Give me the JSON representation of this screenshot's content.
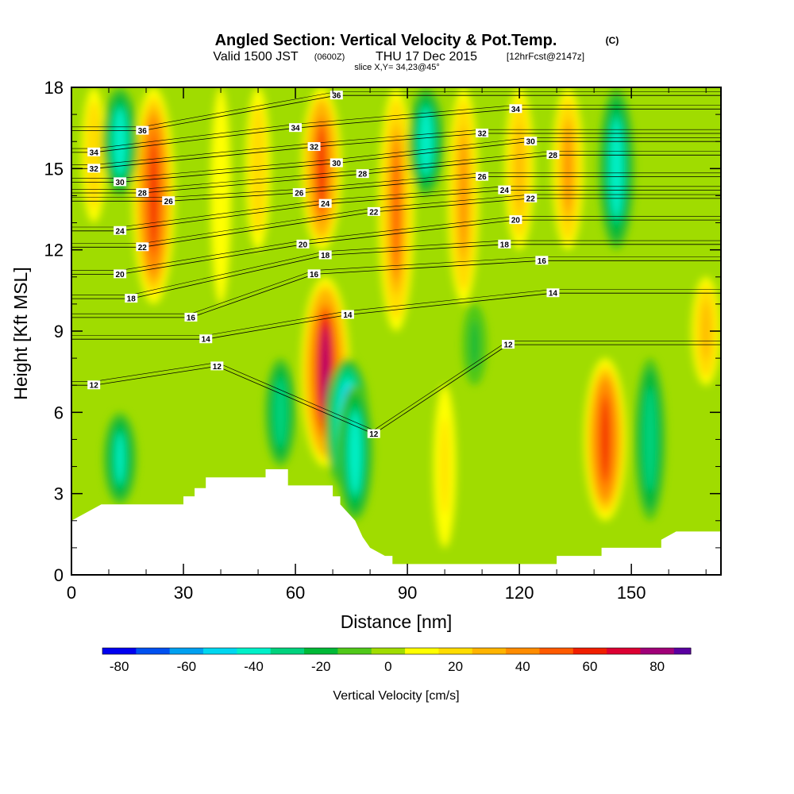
{
  "header": {
    "title_main": "Angled Section: Vertical Velocity & Pot.Temp.",
    "title_unit": "(C)",
    "valid_prefix": "Valid 1500 JST",
    "valid_utc": "(0600Z)",
    "valid_date": "THU 17 Dec 2015",
    "forecast": "[12hrFcst@2147z]",
    "slice": "slice X,Y= 34,23@45°"
  },
  "chart_data": {
    "type": "heatmap",
    "xlabel": "Distance [nm]",
    "ylabel": "Height [Kft MSL]",
    "xlim": [
      0,
      174
    ],
    "ylim": [
      0,
      18
    ],
    "x_ticks": [
      0,
      30,
      60,
      90,
      120,
      150
    ],
    "y_ticks": [
      0,
      3,
      6,
      9,
      12,
      15,
      18
    ],
    "colorbar": {
      "label": "Vertical Velocity [cm/s]",
      "tick_labels": [
        -80,
        -60,
        -40,
        -20,
        0,
        20,
        40,
        60,
        80
      ],
      "bounds": [
        -85,
        90
      ],
      "bins": [
        {
          "from": -85,
          "to": -75,
          "color": "#0000f0"
        },
        {
          "from": -75,
          "to": -65,
          "color": "#0050f0"
        },
        {
          "from": -65,
          "to": -55,
          "color": "#00a0f0"
        },
        {
          "from": -55,
          "to": -45,
          "color": "#00d7f0"
        },
        {
          "from": -45,
          "to": -35,
          "color": "#00f0c8"
        },
        {
          "from": -35,
          "to": -25,
          "color": "#00d27d"
        },
        {
          "from": -25,
          "to": -15,
          "color": "#00b937"
        },
        {
          "from": -15,
          "to": -5,
          "color": "#50c819"
        },
        {
          "from": -5,
          "to": 5,
          "color": "#a0dc00"
        },
        {
          "from": 5,
          "to": 15,
          "color": "#ffff00"
        },
        {
          "from": 15,
          "to": 25,
          "color": "#ffdc00"
        },
        {
          "from": 25,
          "to": 35,
          "color": "#ffb400"
        },
        {
          "from": 35,
          "to": 45,
          "color": "#ff8c00"
        },
        {
          "from": 45,
          "to": 55,
          "color": "#ff5a00"
        },
        {
          "from": 55,
          "to": 65,
          "color": "#f01e00"
        },
        {
          "from": 65,
          "to": 75,
          "color": "#dc0032"
        },
        {
          "from": 75,
          "to": 85,
          "color": "#a00078"
        },
        {
          "from": 85,
          "to": 90,
          "color": "#5a00a0"
        }
      ]
    },
    "terrain_top_kft": [
      [
        0,
        2.0
      ],
      [
        4,
        2.3
      ],
      [
        8,
        2.6
      ],
      [
        30,
        2.6
      ],
      [
        30,
        2.9
      ],
      [
        33,
        2.9
      ],
      [
        33,
        3.2
      ],
      [
        36,
        3.2
      ],
      [
        36,
        3.6
      ],
      [
        52,
        3.6
      ],
      [
        52,
        3.9
      ],
      [
        58,
        3.9
      ],
      [
        58,
        3.3
      ],
      [
        70,
        3.3
      ],
      [
        70,
        2.9
      ],
      [
        72,
        2.9
      ],
      [
        72,
        2.6
      ],
      [
        74,
        2.3
      ],
      [
        76,
        2.0
      ],
      [
        78,
        1.4
      ],
      [
        80,
        1.0
      ],
      [
        84,
        0.7
      ],
      [
        86,
        0.7
      ],
      [
        86,
        0.4
      ],
      [
        130,
        0.4
      ],
      [
        130,
        0.7
      ],
      [
        142,
        0.7
      ],
      [
        142,
        1.0
      ],
      [
        158,
        1.0
      ],
      [
        158,
        1.3
      ],
      [
        162,
        1.6
      ],
      [
        174,
        1.6
      ]
    ],
    "velocity_bands": [
      {
        "x": 22,
        "y0": 10,
        "y1": 18,
        "peak": 60
      },
      {
        "x": 6,
        "y0": 13,
        "y1": 18,
        "peak": 20
      },
      {
        "x": 13,
        "y0": 14,
        "y1": 18,
        "peak": -45
      },
      {
        "x": 40,
        "y0": 10,
        "y1": 18,
        "peak": 10
      },
      {
        "x": 50,
        "y0": 12,
        "y1": 18,
        "peak": 20
      },
      {
        "x": 67,
        "y0": 12,
        "y1": 18,
        "peak": 55
      },
      {
        "x": 68,
        "y0": 4,
        "y1": 11,
        "peak": 75
      },
      {
        "x": 74,
        "y0": 3,
        "y1": 8,
        "peak": -65
      },
      {
        "x": 76,
        "y0": 2,
        "y1": 7,
        "peak": -45
      },
      {
        "x": 87,
        "y0": 9,
        "y1": 18,
        "peak": 45
      },
      {
        "x": 95,
        "y0": 14,
        "y1": 18,
        "peak": -45
      },
      {
        "x": 105,
        "y0": 10,
        "y1": 18,
        "peak": 35
      },
      {
        "x": 120,
        "y0": 12,
        "y1": 18,
        "peak": 30
      },
      {
        "x": 133,
        "y0": 12,
        "y1": 18,
        "peak": 35
      },
      {
        "x": 146,
        "y0": 12,
        "y1": 18,
        "peak": -45
      },
      {
        "x": 143,
        "y0": 2,
        "y1": 8,
        "peak": 60
      },
      {
        "x": 155,
        "y0": 2,
        "y1": 8,
        "peak": -35
      },
      {
        "x": 170,
        "y0": 7,
        "y1": 11,
        "peak": 30
      },
      {
        "x": 13,
        "y0": 2.6,
        "y1": 6,
        "peak": -40
      },
      {
        "x": 56,
        "y0": 4,
        "y1": 8,
        "peak": -35
      },
      {
        "x": 108,
        "y0": 7,
        "y1": 10,
        "peak": -20
      },
      {
        "x": 100,
        "y0": 1,
        "y1": 7,
        "peak": 15
      }
    ],
    "isotherm_labels": [
      {
        "value": "36",
        "x": 19,
        "y": 16.4
      },
      {
        "value": "34",
        "x": 6,
        "y": 15.6
      },
      {
        "value": "32",
        "x": 6,
        "y": 15.0
      },
      {
        "value": "30",
        "x": 13,
        "y": 14.5
      },
      {
        "value": "28",
        "x": 19,
        "y": 14.1
      },
      {
        "value": "26",
        "x": 26,
        "y": 13.8
      },
      {
        "value": "24",
        "x": 13,
        "y": 12.7
      },
      {
        "value": "22",
        "x": 19,
        "y": 12.1
      },
      {
        "value": "20",
        "x": 13,
        "y": 11.1
      },
      {
        "value": "18",
        "x": 16,
        "y": 10.2
      },
      {
        "value": "16",
        "x": 32,
        "y": 9.5
      },
      {
        "value": "14",
        "x": 36,
        "y": 8.7
      },
      {
        "value": "12",
        "x": 39,
        "y": 7.7
      },
      {
        "value": "12",
        "x": 6,
        "y": 7.0
      },
      {
        "value": "36",
        "x": 71,
        "y": 17.7
      },
      {
        "value": "34",
        "x": 60,
        "y": 16.5
      },
      {
        "value": "32",
        "x": 65,
        "y": 15.8
      },
      {
        "value": "30",
        "x": 71,
        "y": 15.2
      },
      {
        "value": "28",
        "x": 78,
        "y": 14.8
      },
      {
        "value": "26",
        "x": 61,
        "y": 14.1
      },
      {
        "value": "24",
        "x": 68,
        "y": 13.7
      },
      {
        "value": "22",
        "x": 81,
        "y": 13.4
      },
      {
        "value": "20",
        "x": 62,
        "y": 12.2
      },
      {
        "value": "18",
        "x": 68,
        "y": 11.8
      },
      {
        "value": "16",
        "x": 65,
        "y": 11.1
      },
      {
        "value": "14",
        "x": 74,
        "y": 9.6
      },
      {
        "value": "12",
        "x": 81,
        "y": 5.2
      },
      {
        "value": "34",
        "x": 119,
        "y": 17.2
      },
      {
        "value": "32",
        "x": 110,
        "y": 16.3
      },
      {
        "value": "30",
        "x": 123,
        "y": 16.0
      },
      {
        "value": "28",
        "x": 129,
        "y": 15.5
      },
      {
        "value": "26",
        "x": 110,
        "y": 14.7
      },
      {
        "value": "24",
        "x": 116,
        "y": 14.2
      },
      {
        "value": "22",
        "x": 123,
        "y": 13.9
      },
      {
        "value": "20",
        "x": 119,
        "y": 13.1
      },
      {
        "value": "18",
        "x": 116,
        "y": 12.2
      },
      {
        "value": "16",
        "x": 126,
        "y": 11.6
      },
      {
        "value": "14",
        "x": 129,
        "y": 10.4
      },
      {
        "value": "12",
        "x": 117,
        "y": 8.5
      }
    ]
  }
}
